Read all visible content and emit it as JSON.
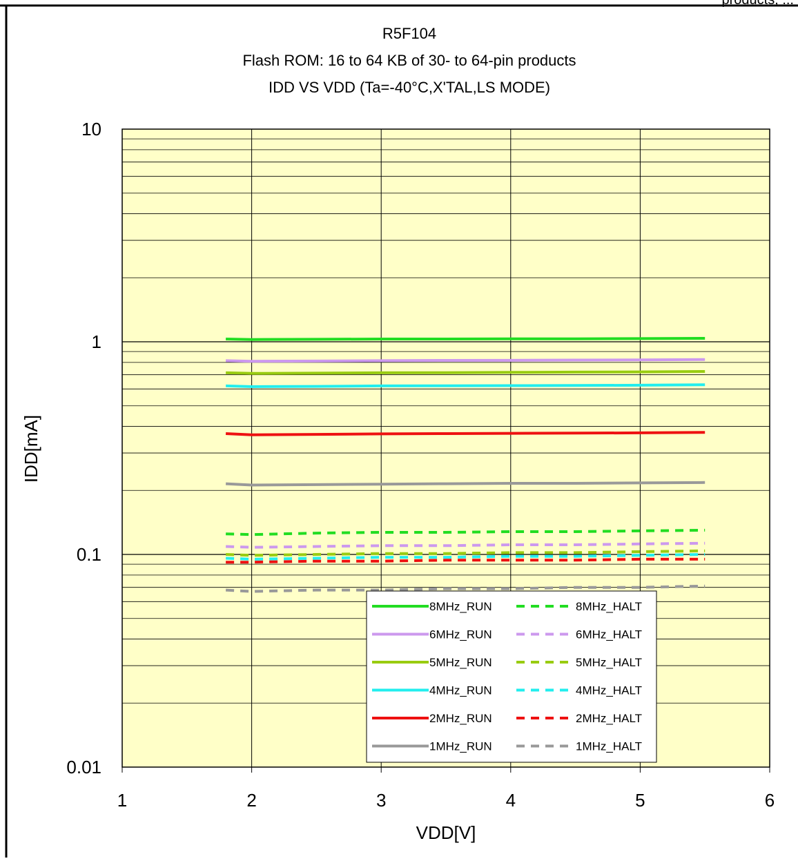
{
  "header_fragment": "products, ...",
  "chart_data": {
    "type": "line",
    "title_lines": [
      "R5F104",
      "Flash ROM: 16 to 64 KB of 30- to 64-pin products",
      "IDD VS VDD (Ta=-40°C,X'TAL,LS MODE)"
    ],
    "xlabel": "VDD[V]",
    "ylabel": "IDD[mA]",
    "xlim": [
      1,
      6
    ],
    "ylim": [
      0.01,
      10
    ],
    "yscale": "log",
    "x_ticks": [
      "1",
      "2",
      "3",
      "4",
      "5",
      "6"
    ],
    "y_ticks": [
      "0.01",
      "0.1",
      "1",
      "10"
    ],
    "plot_background": "#ffffc8",
    "grid": true,
    "legend_position": "bottom-right",
    "x": [
      1.8,
      2.0,
      2.5,
      3.0,
      3.5,
      4.0,
      4.5,
      5.0,
      5.5
    ],
    "series": [
      {
        "name": "8MHz_RUN",
        "color": "#22dd22",
        "style": "solid",
        "values": [
          1.03,
          1.025,
          1.027,
          1.03,
          1.03,
          1.032,
          1.033,
          1.035,
          1.038
        ]
      },
      {
        "name": "8MHz_HALT",
        "color": "#22dd22",
        "style": "dashed",
        "values": [
          0.125,
          0.124,
          0.126,
          0.127,
          0.127,
          0.128,
          0.128,
          0.129,
          0.13
        ]
      },
      {
        "name": "6MHz_RUN",
        "color": "#cc99ee",
        "style": "solid",
        "values": [
          0.815,
          0.81,
          0.812,
          0.815,
          0.817,
          0.818,
          0.82,
          0.822,
          0.825
        ]
      },
      {
        "name": "6MHz_HALT",
        "color": "#cc99ee",
        "style": "dashed",
        "values": [
          0.109,
          0.108,
          0.109,
          0.11,
          0.11,
          0.111,
          0.111,
          0.112,
          0.113
        ]
      },
      {
        "name": "5MHz_RUN",
        "color": "#99cc11",
        "style": "solid",
        "values": [
          0.715,
          0.71,
          0.712,
          0.715,
          0.716,
          0.718,
          0.72,
          0.722,
          0.725
        ]
      },
      {
        "name": "5MHz_HALT",
        "color": "#99cc11",
        "style": "dashed",
        "values": [
          0.1,
          0.099,
          0.1,
          0.101,
          0.101,
          0.102,
          0.102,
          0.103,
          0.104
        ]
      },
      {
        "name": "4MHz_RUN",
        "color": "#22eeee",
        "style": "solid",
        "values": [
          0.62,
          0.615,
          0.617,
          0.62,
          0.621,
          0.622,
          0.623,
          0.625,
          0.628
        ]
      },
      {
        "name": "4MHz_HALT",
        "color": "#22eeee",
        "style": "dashed",
        "values": [
          0.096,
          0.095,
          0.096,
          0.097,
          0.097,
          0.098,
          0.098,
          0.099,
          0.1
        ]
      },
      {
        "name": "2MHz_RUN",
        "color": "#ee1111",
        "style": "solid",
        "values": [
          0.37,
          0.365,
          0.367,
          0.369,
          0.37,
          0.371,
          0.372,
          0.373,
          0.375
        ]
      },
      {
        "name": "2MHz_HALT",
        "color": "#ee1111",
        "style": "dashed",
        "values": [
          0.092,
          0.092,
          0.093,
          0.093,
          0.094,
          0.094,
          0.094,
          0.095,
          0.095
        ]
      },
      {
        "name": "1MHz_RUN",
        "color": "#999999",
        "style": "solid",
        "values": [
          0.215,
          0.212,
          0.213,
          0.214,
          0.215,
          0.216,
          0.216,
          0.217,
          0.218
        ]
      },
      {
        "name": "1MHz_HALT",
        "color": "#999999",
        "style": "dashed",
        "values": [
          0.068,
          0.067,
          0.068,
          0.068,
          0.069,
          0.069,
          0.07,
          0.07,
          0.071
        ]
      }
    ]
  }
}
